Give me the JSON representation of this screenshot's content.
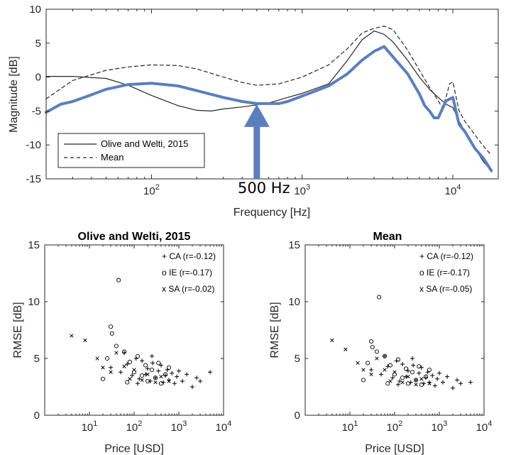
{
  "chart_data": [
    {
      "type": "line",
      "xscale": "log",
      "xlim": [
        20,
        20000
      ],
      "ylim": [
        -15,
        10
      ],
      "yticks": [
        -15,
        -10,
        -5,
        0,
        5,
        10
      ],
      "xticks": [
        {
          "value": 100,
          "base": "10",
          "exp": "2"
        },
        {
          "value": 1000,
          "base": "10",
          "exp": "3"
        },
        {
          "value": 10000,
          "base": "10",
          "exp": "4"
        }
      ],
      "xlabel": "Frequency [Hz]",
      "ylabel": "Magnitude [dB]",
      "legend_position": "bottom-left",
      "annotation": {
        "text": "500 Hz",
        "x": 500,
        "arrow_tip_y": -4.0,
        "arrow_base_y": -15
      },
      "series": [
        {
          "name": "Olive and Welti, 2015",
          "style": "solid",
          "color": "#262626",
          "in_legend": true,
          "x": [
            20,
            30,
            50,
            70,
            100,
            150,
            200,
            250,
            300,
            400,
            500,
            600,
            700,
            800,
            1000,
            1500,
            2000,
            2500,
            3000,
            3500,
            4000,
            5000,
            6000,
            7000,
            8000,
            9000,
            10000,
            11000,
            12000,
            14000,
            16000,
            18000
          ],
          "y": [
            0.1,
            0.1,
            -0.2,
            -1.2,
            -2.7,
            -4.2,
            -4.9,
            -5.0,
            -4.7,
            -4.4,
            -4.1,
            -3.8,
            -3.4,
            -3.0,
            -2.4,
            -1.0,
            2.5,
            5.5,
            6.8,
            6.3,
            5.2,
            2.5,
            0.0,
            -1.8,
            -3.0,
            -4.0,
            -4.5,
            -6.5,
            -8.0,
            -10.5,
            -12.5,
            -13.8
          ]
        },
        {
          "name": "Mean",
          "style": "dashed",
          "color": "#262626",
          "in_legend": true,
          "x": [
            20,
            30,
            50,
            70,
            100,
            150,
            200,
            300,
            400,
            500,
            700,
            1000,
            1500,
            2000,
            2500,
            3000,
            3500,
            4000,
            5000,
            6000,
            7000,
            8000,
            8500,
            9000,
            9500,
            10000,
            11000,
            12000,
            14000,
            16000,
            18000
          ],
          "y": [
            -3.2,
            -0.5,
            1.0,
            1.5,
            1.8,
            1.7,
            1.2,
            0.0,
            -0.8,
            -1.2,
            -1.0,
            0.0,
            1.8,
            4.2,
            6.5,
            7.2,
            7.5,
            7.0,
            4.0,
            1.0,
            -1.5,
            -3.5,
            -4.5,
            -3.0,
            -1.0,
            -0.7,
            -5.0,
            -6.5,
            -8.5,
            -10.2,
            -11.5
          ]
        },
        {
          "name": "",
          "style": "solid-thick",
          "color": "#5b7fbe",
          "in_legend": false,
          "x": [
            20,
            25,
            30,
            40,
            50,
            70,
            100,
            150,
            200,
            300,
            400,
            500,
            600,
            700,
            800,
            1000,
            1500,
            2000,
            2500,
            3000,
            3500,
            4000,
            5000,
            6000,
            6500,
            7000,
            7500,
            8000,
            9000,
            10000,
            11000,
            12000,
            14000,
            16000,
            18000
          ],
          "y": [
            -5.2,
            -4.0,
            -3.6,
            -2.6,
            -1.8,
            -1.1,
            -0.9,
            -1.3,
            -2.0,
            -3.0,
            -3.6,
            -3.9,
            -3.9,
            -3.9,
            -3.6,
            -2.8,
            -1.3,
            0.5,
            2.5,
            3.8,
            4.5,
            3.0,
            0.5,
            -2.5,
            -4.2,
            -5.0,
            -6.0,
            -6.0,
            -3.5,
            -3.0,
            -7.0,
            -8.0,
            -10.5,
            -12.0,
            -13.8
          ]
        }
      ]
    },
    {
      "type": "scatter",
      "title": "Olive and Welti, 2015",
      "xscale": "log",
      "xlim": [
        1,
        10000
      ],
      "ylim": [
        0,
        15
      ],
      "yticks": [
        0,
        5,
        10,
        15
      ],
      "xticks": [
        {
          "value": 10,
          "base": "10",
          "exp": "1"
        },
        {
          "value": 100,
          "base": "10",
          "exp": "2"
        },
        {
          "value": 1000,
          "base": "10",
          "exp": "3"
        },
        {
          "value": 10000,
          "base": "10",
          "exp": "4"
        }
      ],
      "xlabel": "Price [USD]",
      "ylabel": "RMSE [dB]",
      "legend": [
        "+ CA (r=-0.12)",
        "o IE (r=-0.17)",
        "x SA (r=-0.02)"
      ],
      "series": [
        {
          "name": "CA",
          "marker": "+",
          "x": [
            30,
            50,
            70,
            90,
            110,
            130,
            150,
            180,
            200,
            230,
            260,
            300,
            350,
            400,
            450,
            500,
            550,
            600,
            700,
            800,
            900,
            1000,
            1200,
            1500,
            2000,
            2500,
            3000,
            5000,
            60,
            120,
            250
          ],
          "y": [
            4.2,
            3.8,
            4.5,
            3.5,
            5.0,
            3.2,
            4.8,
            3.6,
            4.1,
            3.0,
            4.6,
            3.3,
            3.9,
            4.4,
            2.9,
            3.5,
            4.0,
            3.1,
            3.7,
            2.8,
            3.4,
            3.9,
            3.0,
            3.6,
            2.5,
            3.3,
            3.0,
            3.8,
            5.5,
            2.8,
            5.2
          ]
        },
        {
          "name": "IE",
          "marker": "o",
          "x": [
            45,
            30,
            32,
            40,
            25,
            60,
            80,
            100,
            120,
            150,
            180,
            200,
            250,
            300,
            350,
            400,
            500,
            600,
            20,
            70
          ],
          "y": [
            11.9,
            7.8,
            7.2,
            6.1,
            5.0,
            5.6,
            4.7,
            3.8,
            5.2,
            3.5,
            4.4,
            3.0,
            4.0,
            3.3,
            4.6,
            2.8,
            3.6,
            4.2,
            3.2,
            2.9
          ]
        },
        {
          "name": "SA",
          "marker": "x",
          "x": [
            4,
            8,
            15,
            20,
            30,
            40,
            60,
            80,
            100,
            150,
            200,
            300,
            400,
            600
          ],
          "y": [
            7.0,
            6.6,
            5.0,
            4.2,
            3.8,
            5.5,
            4.3,
            3.2,
            4.0,
            3.1,
            3.6,
            2.9,
            3.4,
            3.0
          ]
        }
      ]
    },
    {
      "type": "scatter",
      "title": "Mean",
      "xscale": "log",
      "xlim": [
        1,
        10000
      ],
      "ylim": [
        0,
        15
      ],
      "yticks": [
        0,
        5,
        10,
        15
      ],
      "xticks": [
        {
          "value": 10,
          "base": "10",
          "exp": "1"
        },
        {
          "value": 100,
          "base": "10",
          "exp": "2"
        },
        {
          "value": 1000,
          "base": "10",
          "exp": "3"
        },
        {
          "value": 10000,
          "base": "10",
          "exp": "4"
        }
      ],
      "xlabel": "Price [USD]",
      "ylabel": "RMSE [dB]",
      "legend": [
        "+ CA (r=-0.12)",
        "o IE (r=-0.17)",
        "x SA (r=-0.05)"
      ],
      "series": [
        {
          "name": "CA",
          "marker": "+",
          "x": [
            30,
            50,
            70,
            90,
            110,
            130,
            150,
            180,
            200,
            230,
            260,
            300,
            350,
            400,
            450,
            500,
            550,
            600,
            700,
            800,
            900,
            1000,
            1200,
            1500,
            2000,
            2500,
            3000,
            5000,
            60,
            120,
            250
          ],
          "y": [
            4.0,
            3.6,
            4.3,
            3.3,
            4.8,
            3.0,
            4.5,
            3.4,
            3.9,
            2.9,
            4.4,
            3.1,
            3.7,
            4.2,
            2.8,
            3.3,
            3.8,
            2.9,
            3.5,
            2.6,
            3.2,
            3.7,
            2.9,
            3.4,
            2.4,
            3.1,
            2.8,
            2.9,
            5.2,
            2.7,
            5.0
          ]
        },
        {
          "name": "IE",
          "marker": "o",
          "x": [
            45,
            30,
            32,
            40,
            25,
            60,
            80,
            100,
            120,
            150,
            180,
            200,
            250,
            300,
            350,
            400,
            500,
            600,
            20,
            70
          ],
          "y": [
            10.4,
            6.5,
            6.0,
            5.6,
            4.6,
            5.2,
            4.4,
            3.6,
            4.9,
            3.3,
            4.1,
            2.8,
            3.8,
            3.1,
            4.3,
            2.7,
            3.4,
            4.0,
            3.1,
            2.8
          ]
        },
        {
          "name": "SA",
          "marker": "x",
          "x": [
            4,
            8,
            15,
            20,
            30,
            40,
            60,
            80,
            100,
            150,
            200,
            300,
            400,
            600
          ],
          "y": [
            6.6,
            5.8,
            4.6,
            4.0,
            3.6,
            5.0,
            4.0,
            3.0,
            3.8,
            2.9,
            3.4,
            2.7,
            3.2,
            2.8
          ]
        }
      ]
    }
  ]
}
